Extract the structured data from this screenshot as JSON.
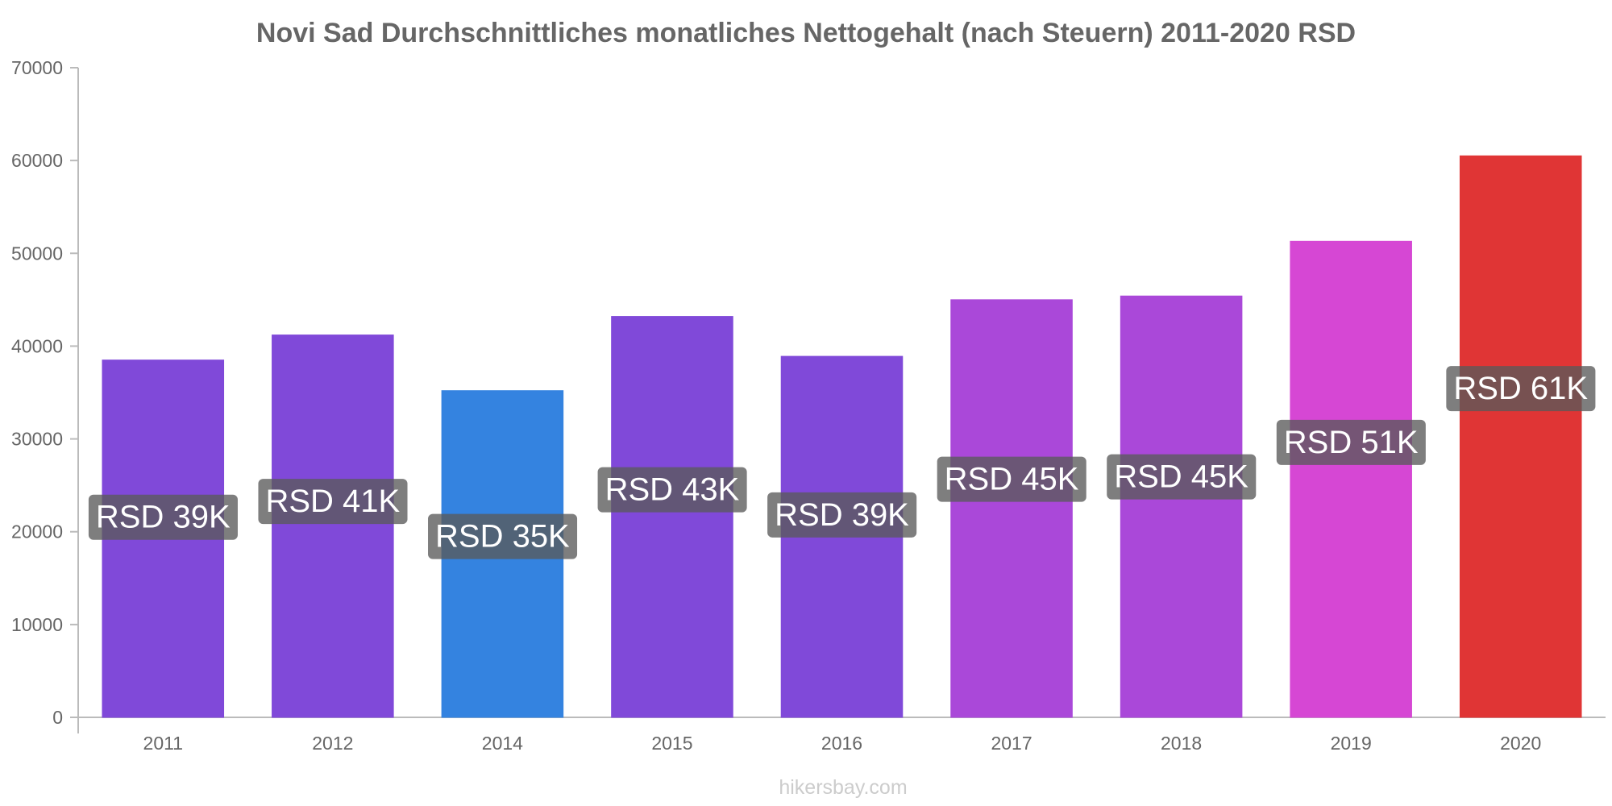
{
  "chart_data": {
    "type": "bar",
    "title": "Novi Sad Durchschnittliches monatliches Nettogehalt (nach Steuern) 2011-2020 RSD",
    "xlabel": "",
    "ylabel": "",
    "categories": [
      "2011",
      "2012",
      "2014",
      "2015",
      "2016",
      "2017",
      "2018",
      "2019",
      "2020"
    ],
    "values": [
      38500,
      41200,
      35200,
      43200,
      38900,
      45000,
      45400,
      51300,
      60500
    ],
    "data_labels": [
      "RSD 39K",
      "RSD 41K",
      "RSD 35K",
      "RSD 43K",
      "RSD 39K",
      "RSD 45K",
      "RSD 45K",
      "RSD 51K",
      "RSD 61K"
    ],
    "bar_colors": [
      "#8049d9",
      "#8049d9",
      "#3483e0",
      "#8049d9",
      "#8049d9",
      "#aa48d9",
      "#aa48d9",
      "#d647d4",
      "#e03535"
    ],
    "label_box_color": "#5a5a5a",
    "ylim": [
      0,
      70000
    ],
    "yticks": [
      0,
      10000,
      20000,
      30000,
      40000,
      50000,
      60000,
      70000
    ],
    "grid": false,
    "legend": "none"
  },
  "footer": {
    "watermark": "hikersbay.com"
  }
}
